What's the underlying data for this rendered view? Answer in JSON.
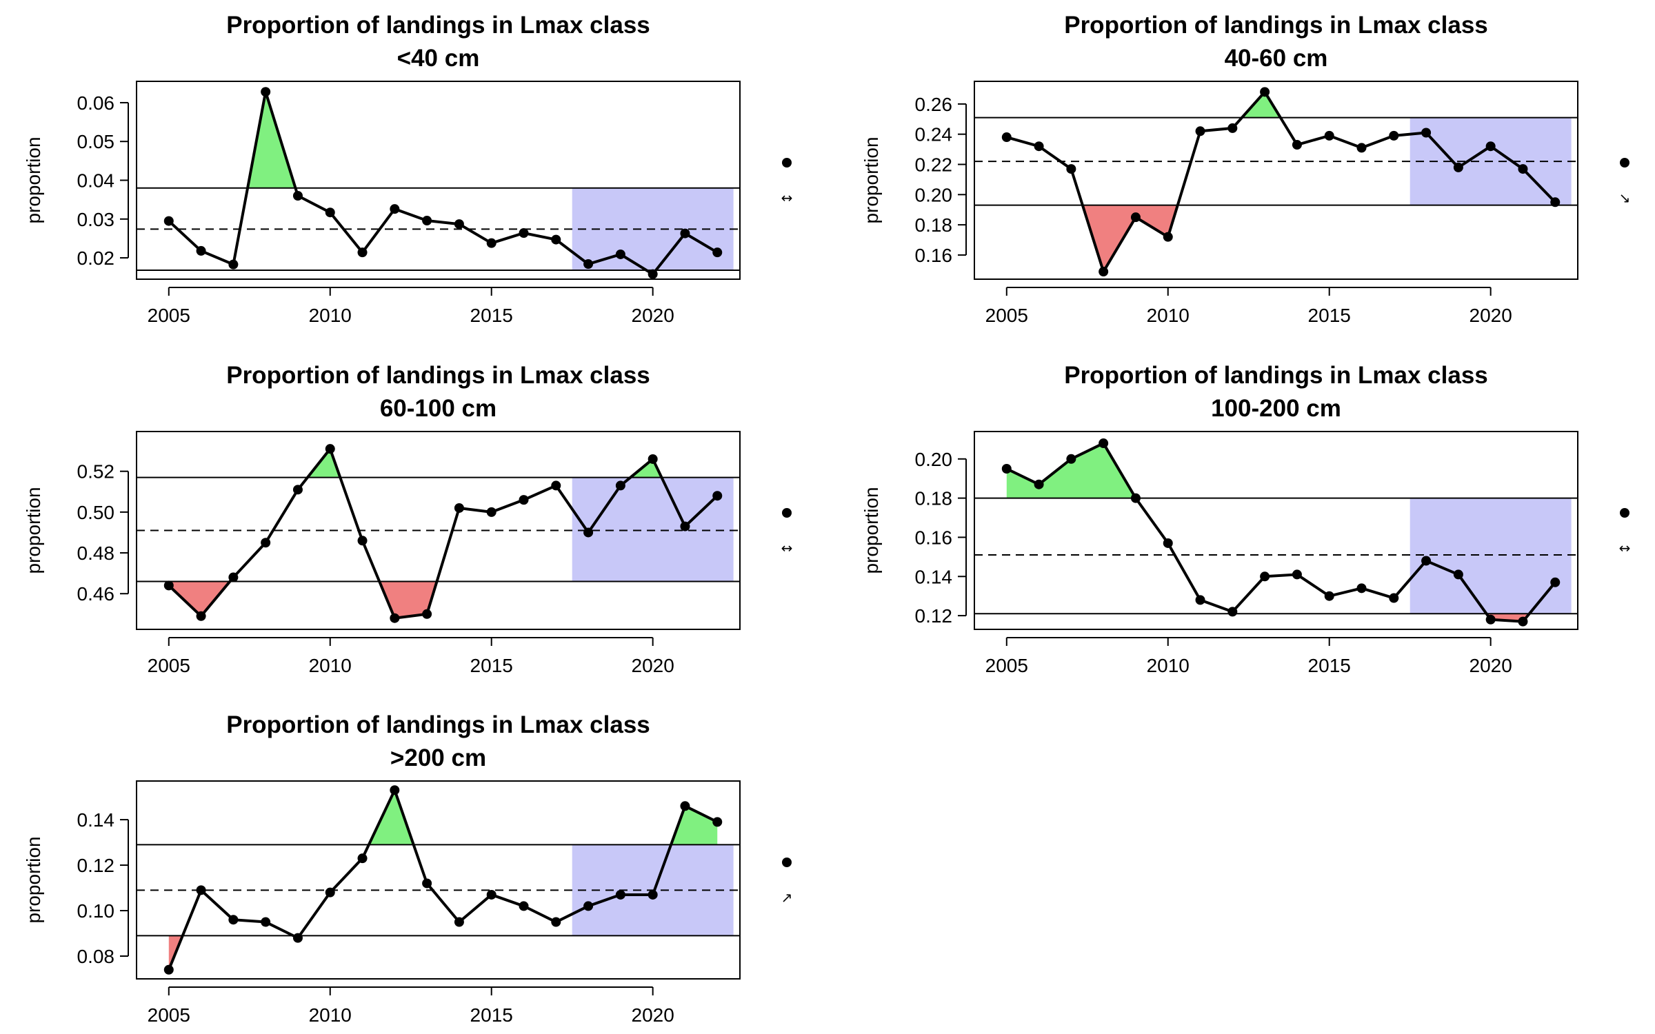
{
  "figure": {
    "background": "#ffffff",
    "colors": {
      "above_fill": "#80f080",
      "below_fill": "#f08080",
      "recent_fill": "#c8c8f8",
      "line": "#000000"
    }
  },
  "chart_data": [
    {
      "type": "line",
      "title": "Proportion of landings in Lmax class",
      "subtitle": "<40 cm",
      "xlabel": "",
      "ylabel": "proportion",
      "x": [
        2005,
        2006,
        2007,
        2008,
        2009,
        2010,
        2011,
        2012,
        2013,
        2014,
        2015,
        2016,
        2017,
        2018,
        2019,
        2020,
        2021,
        2022
      ],
      "values": [
        0.0295,
        0.0218,
        0.0183,
        0.0628,
        0.036,
        0.0317,
        0.0214,
        0.0326,
        0.0296,
        0.0287,
        0.0238,
        0.0264,
        0.0247,
        0.0184,
        0.0209,
        0.0158,
        0.0263,
        0.0214
      ],
      "mean": 0.0274,
      "upper": 0.038,
      "lower": 0.0168,
      "recent_period": [
        2017.5,
        2022.5
      ],
      "xlim": [
        2004,
        2022.7
      ],
      "ylim": [
        0.0145,
        0.0655
      ],
      "xticks": [
        2005,
        2010,
        2015,
        2020
      ],
      "yticks": [
        0.02,
        0.03,
        0.04,
        0.05,
        0.06
      ],
      "ytick_labels": [
        "0.02",
        "0.03",
        "0.04",
        "0.05",
        "0.06"
      ],
      "status_symbols": [
        "●",
        "↔"
      ],
      "grid": false,
      "legend": "none"
    },
    {
      "type": "line",
      "title": "Proportion of landings in Lmax class",
      "subtitle": "40-60 cm",
      "xlabel": "",
      "ylabel": "proportion",
      "x": [
        2005,
        2006,
        2007,
        2008,
        2009,
        2010,
        2011,
        2012,
        2013,
        2014,
        2015,
        2016,
        2017,
        2018,
        2019,
        2020,
        2021,
        2022
      ],
      "values": [
        0.238,
        0.232,
        0.217,
        0.149,
        0.185,
        0.172,
        0.242,
        0.244,
        0.268,
        0.233,
        0.239,
        0.231,
        0.239,
        0.241,
        0.218,
        0.232,
        0.217,
        0.195
      ],
      "mean": 0.222,
      "upper": 0.251,
      "lower": 0.193,
      "recent_period": [
        2017.5,
        2022.5
      ],
      "xlim": [
        2004,
        2022.7
      ],
      "ylim": [
        0.144,
        0.275
      ],
      "xticks": [
        2005,
        2010,
        2015,
        2020
      ],
      "yticks": [
        0.16,
        0.18,
        0.2,
        0.22,
        0.24,
        0.26
      ],
      "ytick_labels": [
        "0.16",
        "0.18",
        "0.20",
        "0.22",
        "0.24",
        "0.26"
      ],
      "status_symbols": [
        "●",
        "↘"
      ],
      "grid": false,
      "legend": "none"
    },
    {
      "type": "line",
      "title": "Proportion of landings in Lmax class",
      "subtitle": "60-100 cm",
      "xlabel": "",
      "ylabel": "proportion",
      "x": [
        2005,
        2006,
        2007,
        2008,
        2009,
        2010,
        2011,
        2012,
        2013,
        2014,
        2015,
        2016,
        2017,
        2018,
        2019,
        2020,
        2021,
        2022
      ],
      "values": [
        0.464,
        0.449,
        0.468,
        0.485,
        0.511,
        0.531,
        0.486,
        0.448,
        0.45,
        0.502,
        0.5,
        0.506,
        0.513,
        0.49,
        0.513,
        0.526,
        0.493,
        0.508
      ],
      "mean": 0.491,
      "upper": 0.517,
      "lower": 0.466,
      "recent_period": [
        2017.5,
        2022.5
      ],
      "xlim": [
        2004,
        2022.7
      ],
      "ylim": [
        0.4425,
        0.5395
      ],
      "xticks": [
        2005,
        2010,
        2015,
        2020
      ],
      "yticks": [
        0.46,
        0.48,
        0.5,
        0.52
      ],
      "ytick_labels": [
        "0.46",
        "0.48",
        "0.50",
        "0.52"
      ],
      "status_symbols": [
        "●",
        "↔"
      ],
      "grid": false,
      "legend": "none"
    },
    {
      "type": "line",
      "title": "Proportion of landings in Lmax class",
      "subtitle": "100-200 cm",
      "xlabel": "",
      "ylabel": "proportion",
      "x": [
        2005,
        2006,
        2007,
        2008,
        2009,
        2010,
        2011,
        2012,
        2013,
        2014,
        2015,
        2016,
        2017,
        2018,
        2019,
        2020,
        2021,
        2022
      ],
      "values": [
        0.195,
        0.187,
        0.2,
        0.208,
        0.18,
        0.157,
        0.128,
        0.122,
        0.14,
        0.141,
        0.13,
        0.134,
        0.129,
        0.148,
        0.141,
        0.118,
        0.117,
        0.137
      ],
      "mean": 0.151,
      "upper": 0.18,
      "lower": 0.121,
      "recent_period": [
        2017.5,
        2022.5
      ],
      "xlim": [
        2004,
        2022.7
      ],
      "ylim": [
        0.113,
        0.214
      ],
      "xticks": [
        2005,
        2010,
        2015,
        2020
      ],
      "yticks": [
        0.12,
        0.14,
        0.16,
        0.18,
        0.2
      ],
      "ytick_labels": [
        "0.12",
        "0.14",
        "0.16",
        "0.18",
        "0.20"
      ],
      "status_symbols": [
        "●",
        "↔"
      ],
      "grid": false,
      "legend": "none"
    },
    {
      "type": "line",
      "title": "Proportion of landings in Lmax class",
      "subtitle": ">200 cm",
      "xlabel": "",
      "ylabel": "proportion",
      "x": [
        2005,
        2006,
        2007,
        2008,
        2009,
        2010,
        2011,
        2012,
        2013,
        2014,
        2015,
        2016,
        2017,
        2018,
        2019,
        2020,
        2021,
        2022
      ],
      "values": [
        0.074,
        0.109,
        0.096,
        0.095,
        0.088,
        0.108,
        0.123,
        0.153,
        0.112,
        0.095,
        0.107,
        0.102,
        0.095,
        0.102,
        0.107,
        0.107,
        0.146,
        0.139
      ],
      "mean": 0.109,
      "upper": 0.129,
      "lower": 0.089,
      "recent_period": [
        2017.5,
        2022.5
      ],
      "xlim": [
        2004,
        2022.7
      ],
      "ylim": [
        0.07,
        0.157
      ],
      "xticks": [
        2005,
        2010,
        2015,
        2020
      ],
      "yticks": [
        0.08,
        0.1,
        0.12,
        0.14
      ],
      "ytick_labels": [
        "0.08",
        "0.10",
        "0.12",
        "0.14"
      ],
      "status_symbols": [
        "●",
        "↗"
      ],
      "grid": false,
      "legend": "none"
    }
  ]
}
